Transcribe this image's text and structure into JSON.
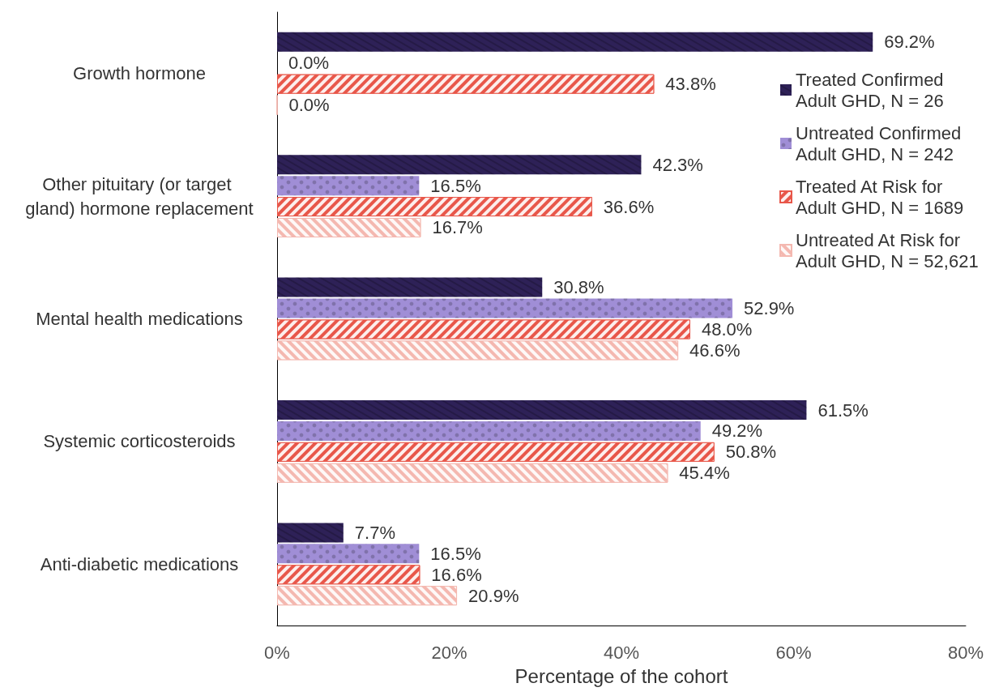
{
  "chart_data": {
    "type": "bar",
    "orientation": "horizontal",
    "xlabel": "Percentage of the cohort",
    "categories": [
      "Growth hormone",
      "Other pituitary (or target gland) hormone replacement",
      "Mental health medications",
      "Systemic corticosteroids",
      "Anti-diabetic medications"
    ],
    "series": [
      {
        "name": "Treated Confirmed Adult GHD, N = 26",
        "color": "#2e2157",
        "values": [
          69.2,
          42.3,
          30.8,
          61.5,
          7.7
        ],
        "value_labels": [
          "69.2%",
          "42.3%",
          "30.8%",
          "61.5%",
          "7.7%"
        ]
      },
      {
        "name": "Untreated Confirmed Adult GHD, N = 242",
        "color": "#a08ed6",
        "values": [
          0.0,
          16.5,
          52.9,
          49.2,
          16.5
        ],
        "value_labels": [
          "0.0%",
          "16.5%",
          "52.9%",
          "49.2%",
          "16.5%"
        ]
      },
      {
        "name": "Treated At Risk for Adult GHD, N = 1689",
        "color": "#e8574a",
        "values": [
          43.8,
          36.6,
          48.0,
          50.8,
          16.6
        ],
        "value_labels": [
          "43.8%",
          "36.6%",
          "48.0%",
          "50.8%",
          "16.6%"
        ]
      },
      {
        "name": "Untreated At Risk for Adult GHD, N = 52,621",
        "color": "#f4b8b0",
        "values": [
          0.0,
          16.7,
          46.6,
          45.4,
          20.9
        ],
        "value_labels": [
          "0.0%",
          "16.7%",
          "46.6%",
          "45.4%",
          "20.9%"
        ]
      }
    ],
    "xlim": [
      0,
      80
    ],
    "xticks": [
      {
        "value": 0,
        "label": "0%"
      },
      {
        "value": 20,
        "label": "20%"
      },
      {
        "value": 40,
        "label": "40%"
      },
      {
        "value": 60,
        "label": "60%"
      },
      {
        "value": 80,
        "label": "80%"
      }
    ],
    "grid": false,
    "legend": "top right"
  }
}
